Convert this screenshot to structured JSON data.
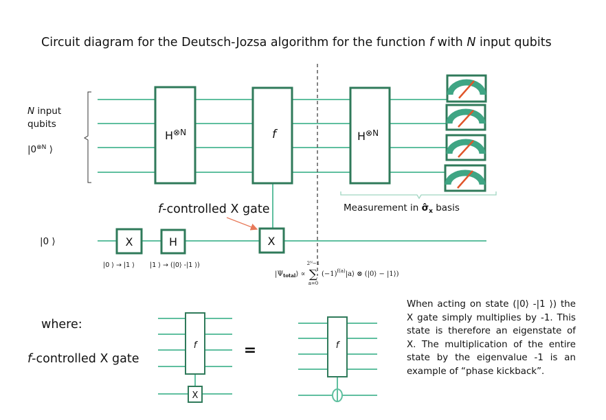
{
  "title": {
    "prefix": "Circuit diagram for the Deutsch-Jozsa algorithm for the function ",
    "f": "f",
    "middle": "  with ",
    "n": "N",
    "suffix": " input qubits"
  },
  "input_label": {
    "line1_n": "N",
    "line1_rest": " input",
    "line2": "qubits",
    "state": "|0",
    "state_sup": "⊗N",
    "state_close": " ⟩"
  },
  "ancilla_label": "|0 ⟩",
  "gates": {
    "hadamard_n": "H",
    "hadamard_sup": "⊗N",
    "oracle": "f",
    "x": "X",
    "h": "H",
    "x_small": "X",
    "oracle_small": "f"
  },
  "x_effect": "|0 ⟩ → |1 ⟩",
  "h_effect": "|1 ⟩ → (|0⟩ -|1 ⟩)",
  "callout": {
    "f": "f",
    "rest": "-controlled X gate"
  },
  "measurement": {
    "prefix": "Measurement in ",
    "sigma": "σ̂",
    "sub": "x",
    "suffix": "  basis"
  },
  "psi": {
    "lhs": "|Ψ",
    "lhs_sub": "total",
    "lhs_close": "⟩ ∝ ",
    "sum_top": "2ᴺ−1",
    "sum": "∑",
    "sum_bottom": "a=0",
    "term": "(−1)",
    "term_sup": "f(a)",
    "rest": "|a⟩ ⊗ (|0⟩ − |1⟩)"
  },
  "where_label": "where:",
  "controlled_label": {
    "f": "f",
    "rest": "-controlled X gate"
  },
  "equals": "=",
  "note": "When acting on state (|0⟩ -|1 ⟩) the X gate simply multiplies by -1. This state is therefore an eigenstate of X. The multiplication of the entire state by the eigenvalue -1 is an example of “phase kickback”.",
  "colors": {
    "wire": "#5fbf9f",
    "gate_border": "#2f7a5a",
    "meter_arc": "#3fa584",
    "meter_needle": "#e0552a",
    "arrow": "#e87a5a",
    "brace": "#9fd5c1"
  },
  "icons": [
    "measurement-meter-icon",
    "control-target-icon"
  ]
}
